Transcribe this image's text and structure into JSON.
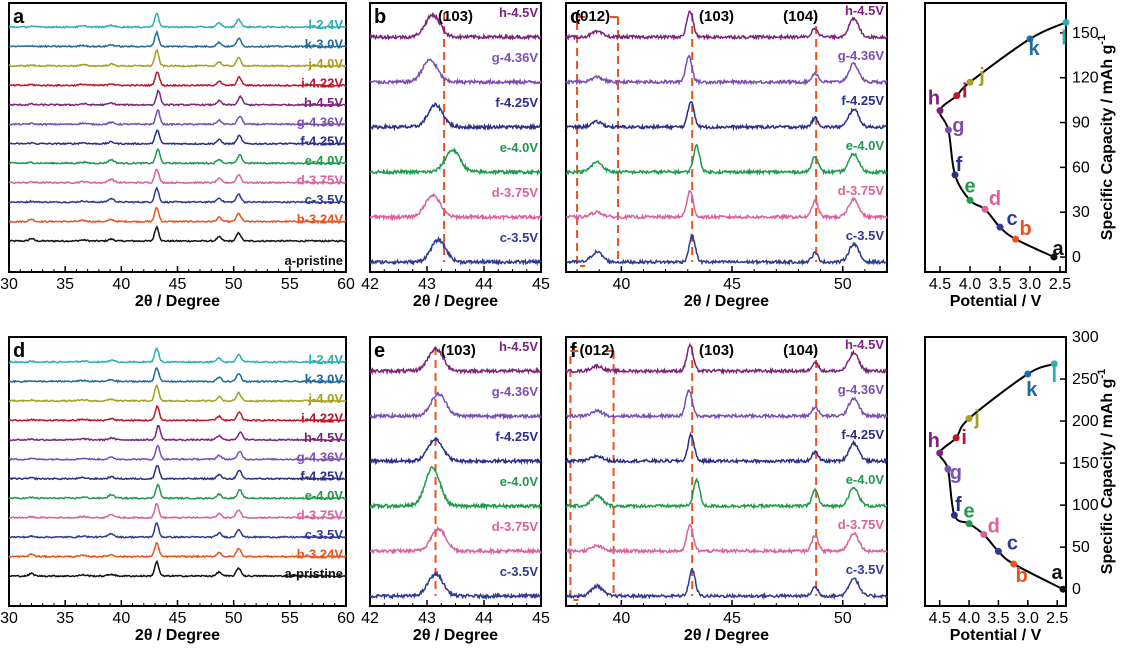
{
  "colors": {
    "a": "#111111",
    "b": "#e8541e",
    "c": "#2e3b8f",
    "d": "#d9629e",
    "e": "#1f9a4a",
    "f": "#2a2f8c",
    "g": "#7b4fb0",
    "h": "#7d237d",
    "i": "#c0142a",
    "j": "#a5a01f",
    "k": "#1f6a9e",
    "l": "#2bb0b0",
    "guide": "#e8541e"
  },
  "chart_data": [
    {
      "id": "a",
      "type": "line",
      "panel_label": "a",
      "xlabel": "2θ / Degree",
      "xlim": [
        30,
        60
      ],
      "xticks": [
        "30",
        "35",
        "40",
        "45",
        "50",
        "55",
        "60"
      ],
      "series": [
        {
          "key": "a",
          "name": "a-pristine"
        },
        {
          "key": "b",
          "name": "b-3.24V"
        },
        {
          "key": "c",
          "name": "c-3.5V"
        },
        {
          "key": "d",
          "name": "d-3.75V"
        },
        {
          "key": "e",
          "name": "e-4.0V"
        },
        {
          "key": "f",
          "name": "f-4.25V"
        },
        {
          "key": "g",
          "name": "g-4.36V"
        },
        {
          "key": "h",
          "name": "h-4.5V"
        },
        {
          "key": "i",
          "name": "i-4.22V"
        },
        {
          "key": "j",
          "name": "j-4.0V"
        },
        {
          "key": "k",
          "name": "k-3.0V"
        },
        {
          "key": "l",
          "name": "l-2.4V"
        }
      ]
    },
    {
      "id": "b",
      "type": "line",
      "panel_label": "b",
      "xlabel": "2θ / Degree",
      "xlim": [
        42,
        45
      ],
      "xticks": [
        "42",
        "43",
        "44",
        "45"
      ],
      "plane_labels": [
        "(103)"
      ],
      "series": [
        {
          "key": "c",
          "name": "c-3.5V"
        },
        {
          "key": "d",
          "name": "d-3.75V"
        },
        {
          "key": "e",
          "name": "e-4.0V"
        },
        {
          "key": "f",
          "name": "f-4.25V"
        },
        {
          "key": "g",
          "name": "g-4.36V"
        },
        {
          "key": "h",
          "name": "h-4.5V"
        }
      ]
    },
    {
      "id": "c",
      "type": "line",
      "panel_label": "c",
      "xlabel": "2θ / Degree",
      "xlim": [
        37.5,
        52
      ],
      "xticks": [
        "40",
        "45",
        "50"
      ],
      "plane_labels": [
        "(012)",
        "(103)",
        "(104)"
      ],
      "series": [
        {
          "key": "c",
          "name": "c-3.5V"
        },
        {
          "key": "d",
          "name": "d-3.75V"
        },
        {
          "key": "e",
          "name": "e-4.0V"
        },
        {
          "key": "f",
          "name": "f-4.25V"
        },
        {
          "key": "g",
          "name": "g-4.36V"
        },
        {
          "key": "h",
          "name": "h-4.5V"
        }
      ]
    },
    {
      "id": "top_capacity",
      "type": "line",
      "xlabel": "Potential / V",
      "ylabel": "Specific Capacity / mAh g",
      "ylabel_sup": "-1",
      "xlim": [
        4.75,
        2.4
      ],
      "ylim": [
        -10,
        170
      ],
      "xticks": [
        "4.5",
        "4.0",
        "3.5",
        "3.0",
        "2.5"
      ],
      "yticks": [
        "0",
        "30",
        "60",
        "90",
        "120",
        "150"
      ],
      "points": [
        {
          "label": "a",
          "x": 2.6,
          "y": 0
        },
        {
          "label": "b",
          "x": 3.24,
          "y": 12
        },
        {
          "label": "c",
          "x": 3.5,
          "y": 20
        },
        {
          "label": "d",
          "x": 3.75,
          "y": 32
        },
        {
          "label": "e",
          "x": 4.0,
          "y": 38
        },
        {
          "label": "f",
          "x": 4.25,
          "y": 55
        },
        {
          "label": "g",
          "x": 4.36,
          "y": 85
        },
        {
          "label": "h",
          "x": 4.5,
          "y": 98
        },
        {
          "label": "i",
          "x": 4.22,
          "y": 108
        },
        {
          "label": "j",
          "x": 4.0,
          "y": 117
        },
        {
          "label": "k",
          "x": 3.0,
          "y": 146
        },
        {
          "label": "l",
          "x": 2.4,
          "y": 157
        }
      ]
    },
    {
      "id": "d",
      "type": "line",
      "panel_label": "d",
      "xlabel": "2θ / Degree",
      "xlim": [
        30,
        60
      ],
      "xticks": [
        "30",
        "35",
        "40",
        "45",
        "50",
        "55",
        "60"
      ],
      "series": [
        {
          "key": "a",
          "name": "a-pristine"
        },
        {
          "key": "b",
          "name": "b-3.24V"
        },
        {
          "key": "c",
          "name": "c-3.5V"
        },
        {
          "key": "d",
          "name": "d-3.75V"
        },
        {
          "key": "e",
          "name": "e-4.0V"
        },
        {
          "key": "f",
          "name": "f-4.25V"
        },
        {
          "key": "g",
          "name": "g-4.36V"
        },
        {
          "key": "h",
          "name": "h-4.5V"
        },
        {
          "key": "i",
          "name": "i-4.22V"
        },
        {
          "key": "j",
          "name": "j-4.0V"
        },
        {
          "key": "k",
          "name": "k-3.0V"
        },
        {
          "key": "l",
          "name": "l-2.4V"
        }
      ]
    },
    {
      "id": "e",
      "type": "line",
      "panel_label": "e",
      "xlabel": "2θ / Degree",
      "xlim": [
        42,
        45
      ],
      "xticks": [
        "42",
        "43",
        "44",
        "45"
      ],
      "plane_labels": [
        "(103)"
      ],
      "series": [
        {
          "key": "c",
          "name": "c-3.5V"
        },
        {
          "key": "d",
          "name": "d-3.75V"
        },
        {
          "key": "e",
          "name": "e-4.0V"
        },
        {
          "key": "f",
          "name": "f-4.25V"
        },
        {
          "key": "g",
          "name": "g-4.36V"
        },
        {
          "key": "h",
          "name": "h-4.5V"
        }
      ]
    },
    {
      "id": "f",
      "type": "line",
      "panel_label": "f",
      "xlabel": "2θ / Degree",
      "xlim": [
        37.5,
        52
      ],
      "xticks": [
        "40",
        "45",
        "50"
      ],
      "plane_labels": [
        "(012)",
        "(103)",
        "(104)"
      ],
      "series": [
        {
          "key": "c",
          "name": "c-3.5V"
        },
        {
          "key": "d",
          "name": "d-3.75V"
        },
        {
          "key": "e",
          "name": "e-4.0V"
        },
        {
          "key": "f",
          "name": "f-4.25V"
        },
        {
          "key": "g",
          "name": "g-4.36V"
        },
        {
          "key": "h",
          "name": "h-4.5V"
        }
      ]
    },
    {
      "id": "bottom_capacity",
      "type": "line",
      "xlabel": "Potential / V",
      "ylabel": "Specific Capacity / mAh g",
      "ylabel_sup": "-1",
      "xlim": [
        4.75,
        2.35
      ],
      "ylim": [
        -20,
        300
      ],
      "xticks": [
        "4.5",
        "4.0",
        "3.5",
        "3.0",
        "2.5"
      ],
      "yticks": [
        "0",
        "50",
        "100",
        "150",
        "200",
        "250",
        "300"
      ],
      "points": [
        {
          "label": "a",
          "x": 2.4,
          "y": 0
        },
        {
          "label": "b",
          "x": 3.24,
          "y": 30
        },
        {
          "label": "c",
          "x": 3.5,
          "y": 45
        },
        {
          "label": "d",
          "x": 3.75,
          "y": 65
        },
        {
          "label": "e",
          "x": 4.0,
          "y": 78
        },
        {
          "label": "f",
          "x": 4.25,
          "y": 88
        },
        {
          "label": "g",
          "x": 4.36,
          "y": 143
        },
        {
          "label": "h",
          "x": 4.5,
          "y": 162
        },
        {
          "label": "i",
          "x": 4.22,
          "y": 180
        },
        {
          "label": "j",
          "x": 4.0,
          "y": 203
        },
        {
          "label": "k",
          "x": 3.0,
          "y": 256
        },
        {
          "label": "l",
          "x": 2.55,
          "y": 268
        }
      ]
    }
  ]
}
